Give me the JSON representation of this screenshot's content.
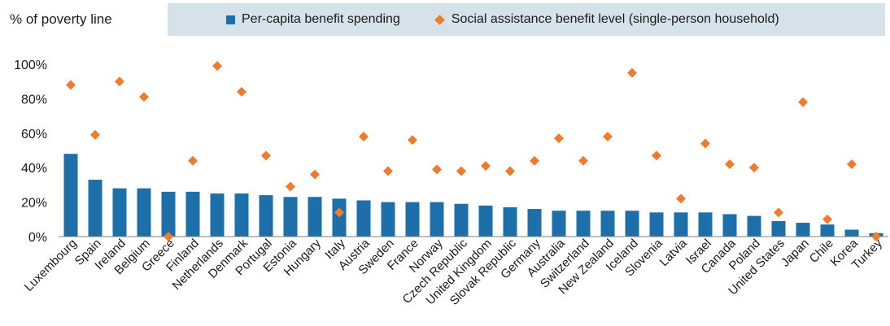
{
  "chart_data": {
    "type": "bar",
    "title": "",
    "ylabel": "% of poverty line",
    "ylim": [
      0,
      100
    ],
    "yticks": [
      "0%",
      "20%",
      "40%",
      "60%",
      "80%",
      "100%"
    ],
    "grid": false,
    "legend_position": "top",
    "categories": [
      "Luxembourg",
      "Spain",
      "Ireland",
      "Belgium",
      "Greece",
      "Finland",
      "Netherlands",
      "Denmark",
      "Portugal",
      "Estonia",
      "Hungary",
      "Italy",
      "Austria",
      "Sweden",
      "France",
      "Norway",
      "Czech Republic",
      "United Kingdom",
      "Slovak Republic",
      "Germany",
      "Australia",
      "Switzerland",
      "New Zealand",
      "Iceland",
      "Slovenia",
      "Latvia",
      "Israel",
      "Canada",
      "Poland",
      "United States",
      "Japan",
      "Chile",
      "Korea",
      "Turkey"
    ],
    "series": [
      {
        "name": "Per-capita benefit spending",
        "kind": "bar",
        "color": "#1d6faa",
        "values": [
          48,
          33,
          28,
          28,
          26,
          26,
          25,
          25,
          24,
          23,
          23,
          22,
          21,
          20,
          20,
          20,
          19,
          18,
          17,
          16,
          15,
          15,
          15,
          15,
          14,
          14,
          14,
          13,
          12,
          9,
          8,
          7,
          4,
          2
        ]
      },
      {
        "name": "Social assistance benefit level (single-person household)",
        "kind": "marker",
        "color": "#ef7b2d",
        "values": [
          88,
          59,
          90,
          81,
          0,
          44,
          99,
          84,
          47,
          29,
          36,
          14,
          58,
          38,
          56,
          39,
          38,
          41,
          38,
          44,
          57,
          44,
          58,
          95,
          47,
          22,
          54,
          42,
          40,
          14,
          78,
          10,
          42,
          0
        ]
      }
    ]
  }
}
